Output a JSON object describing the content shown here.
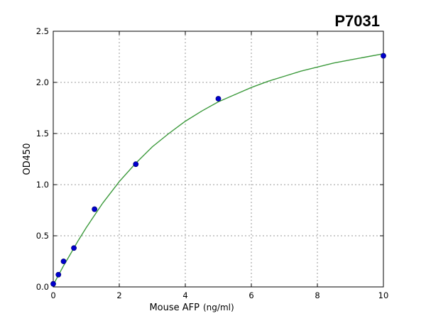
{
  "chart_data": {
    "type": "scatter",
    "title": "P7031",
    "xlabel": "Mouse AFP",
    "xlabel_unit": "(ng/ml)",
    "ylabel": "OD450",
    "xlim": [
      0,
      10
    ],
    "ylim": [
      0,
      2.5
    ],
    "x_ticks": [
      0,
      2,
      4,
      6,
      8,
      10
    ],
    "x_tick_labels": [
      "0",
      "2",
      "4",
      "6",
      "8",
      "10"
    ],
    "y_ticks": [
      0,
      0.5,
      1.0,
      1.5,
      2.0,
      2.5
    ],
    "y_tick_labels": [
      "0.0",
      "0.5",
      "1.0",
      "1.5",
      "2.0",
      "2.5"
    ],
    "grid": true,
    "series": [
      {
        "kind": "points",
        "color": "#0000cc",
        "x": [
          0,
          0.156,
          0.312,
          0.625,
          1.25,
          2.5,
          5,
          10
        ],
        "y": [
          0.03,
          0.12,
          0.25,
          0.38,
          0.76,
          1.2,
          1.84,
          2.26
        ]
      },
      {
        "kind": "fit-curve",
        "color": "#3c9a3c",
        "x": [
          0,
          0.1,
          0.2,
          0.3,
          0.5,
          0.75,
          1,
          1.5,
          2,
          2.5,
          3,
          3.5,
          4,
          4.5,
          5,
          5.5,
          6,
          6.5,
          7,
          7.5,
          8,
          8.5,
          9,
          9.5,
          10
        ],
        "y": [
          0.02,
          0.08,
          0.14,
          0.2,
          0.31,
          0.45,
          0.58,
          0.82,
          1.03,
          1.21,
          1.37,
          1.5,
          1.62,
          1.72,
          1.81,
          1.88,
          1.95,
          2.01,
          2.06,
          2.11,
          2.15,
          2.19,
          2.22,
          2.25,
          2.28
        ]
      }
    ]
  }
}
